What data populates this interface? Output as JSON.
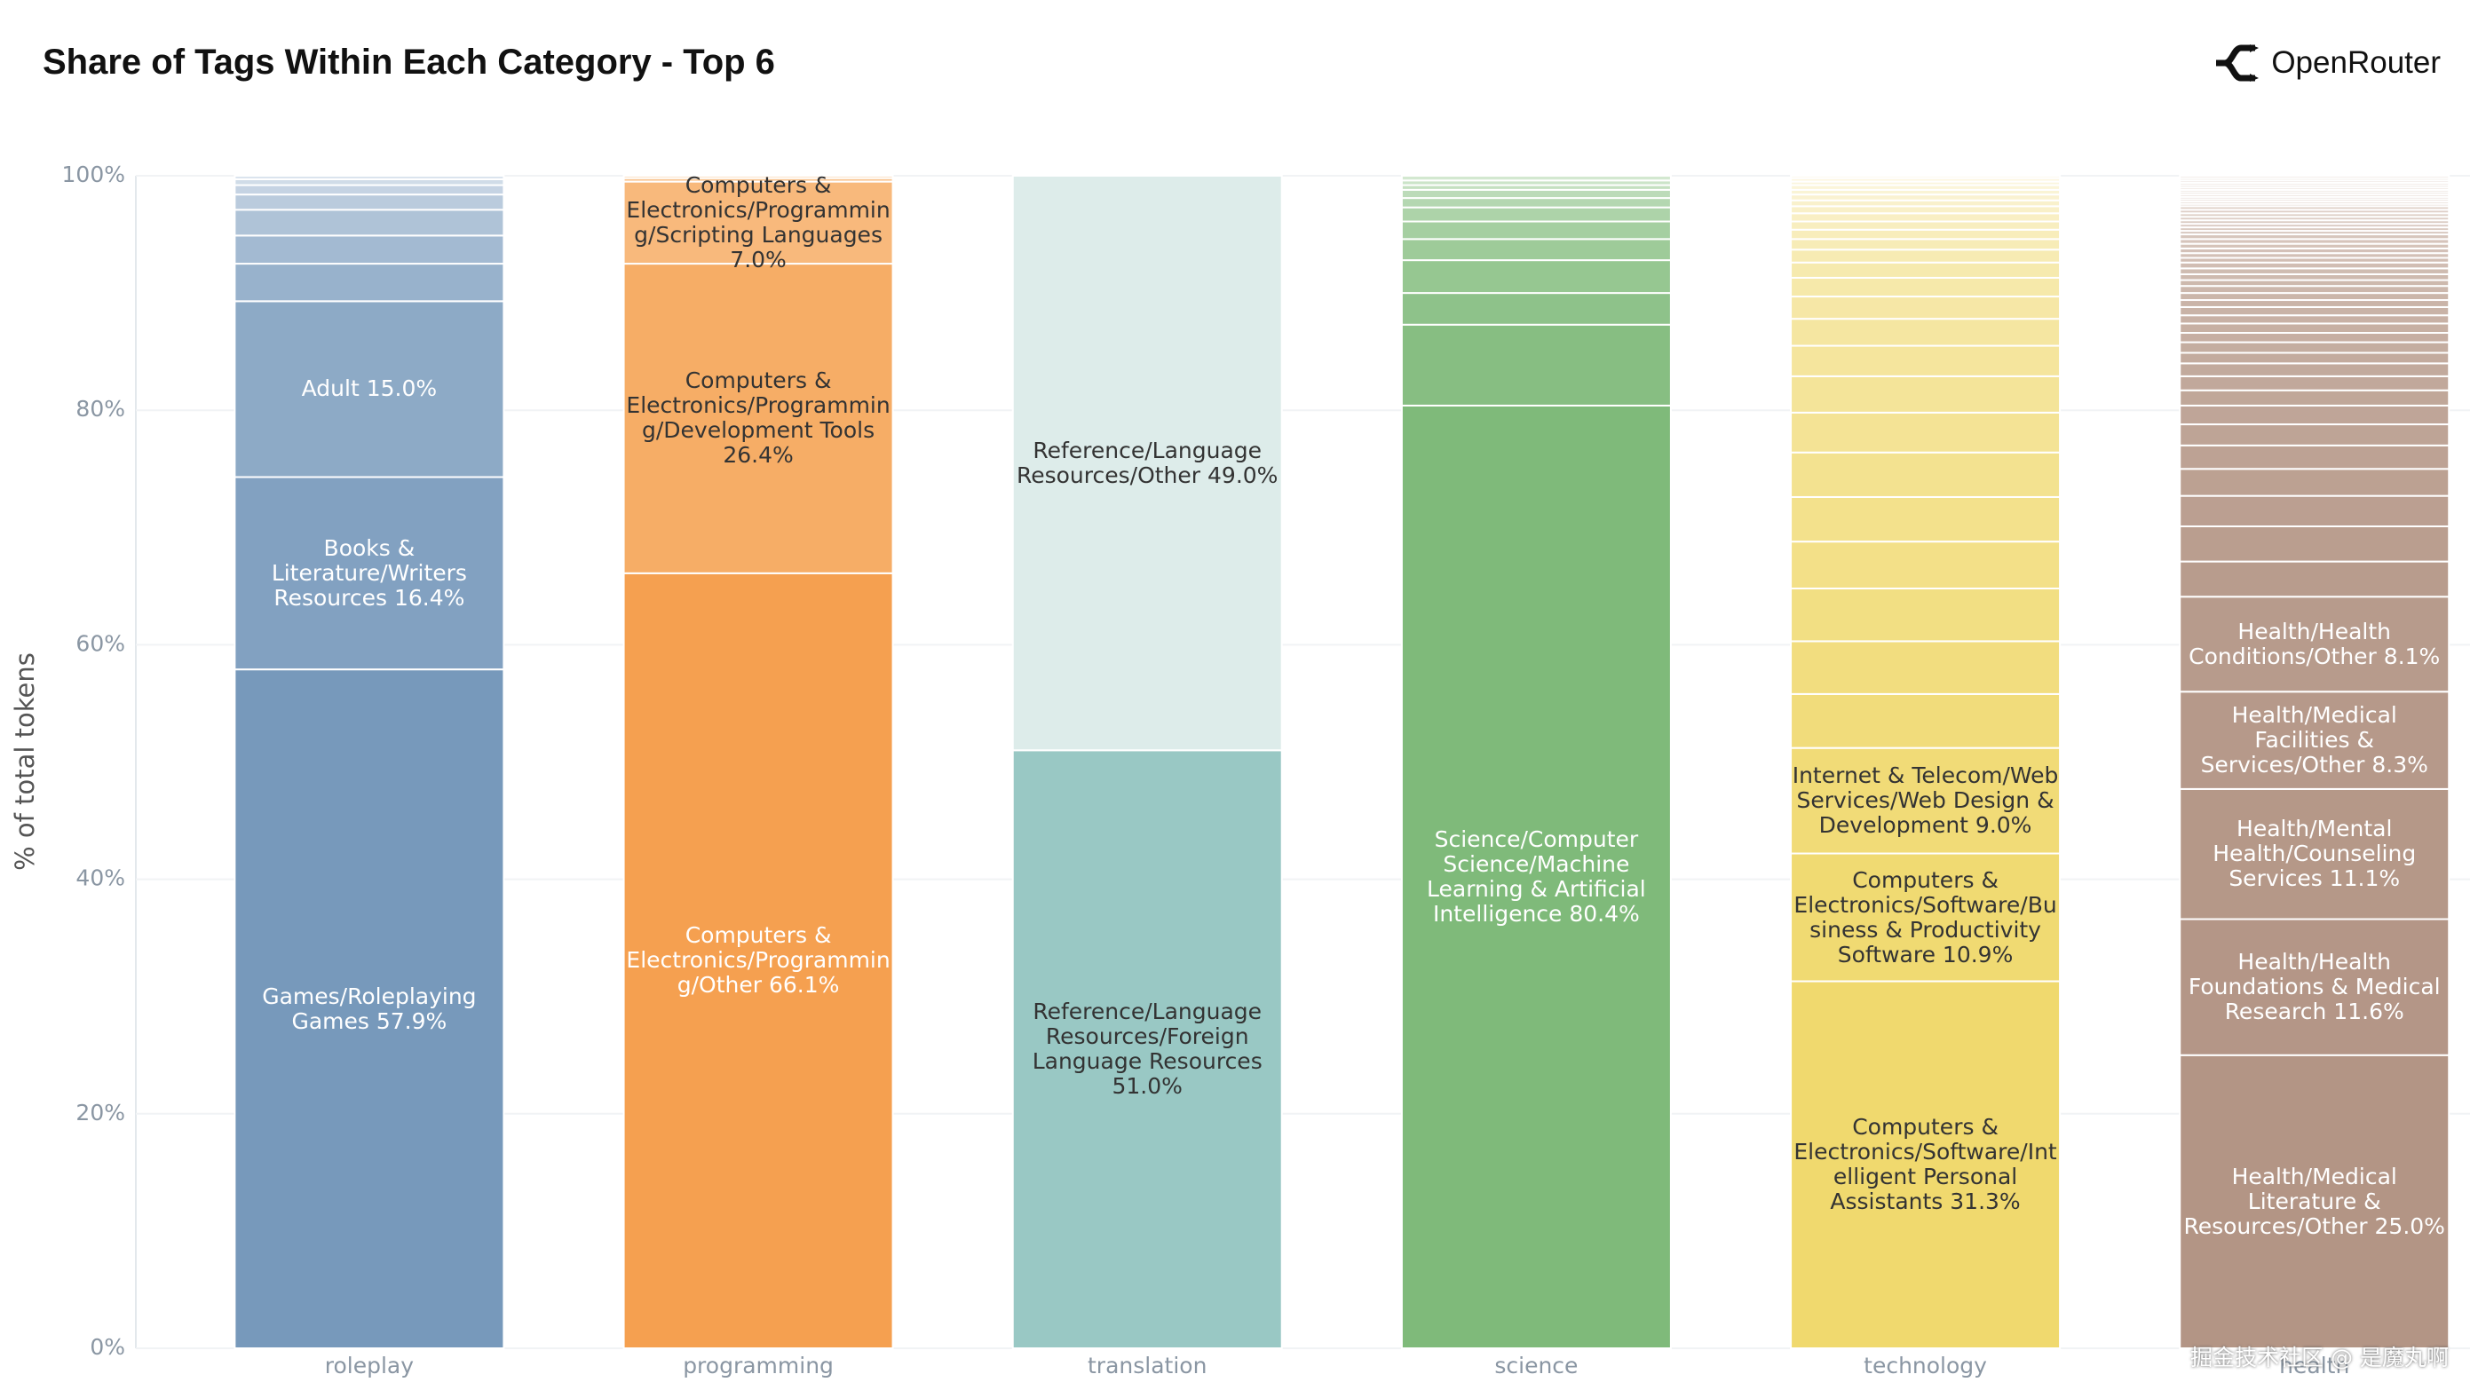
{
  "header": {
    "brand": "OpenRouter"
  },
  "watermark": "掘金技术社区 @ 是魔丸啊",
  "chart_data": {
    "type": "stacked_bar",
    "title": "Share of Tags Within Each Category - Top 6",
    "y_label": "% of total tokens",
    "categories": [
      "roleplay",
      "programming",
      "translation",
      "science",
      "technology",
      "health"
    ],
    "ylim": [
      0,
      100
    ],
    "yticks": [
      {
        "value": 0,
        "label": "0%"
      },
      {
        "value": 20,
        "label": "20%"
      },
      {
        "value": 40,
        "label": "40%"
      },
      {
        "value": 60,
        "label": "60%"
      },
      {
        "value": 80,
        "label": "80%"
      },
      {
        "value": 100,
        "label": "100%"
      }
    ],
    "grid": true,
    "stacks": [
      {
        "color": "#7799bb",
        "top_color": "#dbe4ee",
        "values": [
          57.9,
          16.4,
          15.0,
          3.2,
          2.4,
          2.2,
          1.3,
          0.8,
          0.5,
          0.3
        ],
        "labels": [
          "Games/Roleplaying Games 57.9%",
          "Books & Literature/Writers Resources 16.4%",
          "Adult 15.0%",
          null,
          null,
          null,
          null,
          null,
          null,
          null
        ]
      },
      {
        "color": "#f5a050",
        "top_color": "#fad2a8",
        "values": [
          66.1,
          26.4,
          7.0,
          0.3,
          0.2
        ],
        "labels": [
          "Computers & Electronics/Programming/Other 66.1%",
          "Computers & Electronics/Programming/Development Tools 26.4%",
          "Computers & Electronics/Programming/Scripting Languages 7.0%",
          null,
          null
        ]
      },
      {
        "color": "#99c8c4",
        "top_color": "#ddecea",
        "values": [
          51.0,
          49.0
        ],
        "labels": [
          "Reference/Language Resources/Foreign Language Resources 51.0%",
          "Reference/Language Resources/Other 49.0%"
        ]
      },
      {
        "color": "#7fba7a",
        "top_color": "#d3e8d0",
        "values": [
          80.4,
          6.9,
          2.7,
          2.8,
          1.8,
          1.5,
          1.2,
          0.8,
          0.7,
          0.4,
          0.4,
          0.4
        ],
        "labels": [
          "Science/Computer Science/Machine Learning & Artificial Intelligence 80.4%",
          null,
          null,
          null,
          null,
          null,
          null,
          null,
          null,
          null,
          null,
          null
        ]
      },
      {
        "color": "#f0d96e",
        "top_color": "#fcf8e6",
        "values": [
          31.3,
          10.9,
          9.0,
          4.6,
          4.5,
          4.5,
          4.0,
          3.8,
          3.8,
          3.4,
          3.1,
          2.6,
          2.3,
          1.9,
          1.6,
          1.3,
          1.1,
          0.9,
          0.8,
          0.7,
          0.7,
          0.6,
          0.5,
          0.5,
          0.4,
          0.4,
          0.3,
          0.3,
          0.2
        ],
        "labels": [
          "Computers & Electronics/Software/Intelligent Personal Assistants 31.3%",
          "Computers & Electronics/Software/Business & Productivity Software 10.9%",
          "Internet & Telecom/Web Services/Web Design & Development 9.0%",
          null,
          null,
          null,
          null,
          null,
          null,
          null,
          null,
          null,
          null,
          null,
          null,
          null,
          null,
          null,
          null,
          null,
          null,
          null,
          null,
          null,
          null,
          null,
          null,
          null,
          null
        ]
      },
      {
        "color": "#b39585",
        "top_color": "#eee5e0",
        "values": [
          25.0,
          11.6,
          11.1,
          8.3,
          8.1,
          3.0,
          3.0,
          2.6,
          2.3,
          2.0,
          1.8,
          1.6,
          1.3,
          1.2,
          1.1,
          0.9,
          0.9,
          0.8,
          0.8,
          0.7,
          0.7,
          0.6,
          0.6,
          0.6,
          0.5,
          0.5,
          0.5,
          0.5,
          0.4,
          0.4,
          0.4,
          0.4,
          0.4,
          0.4,
          0.3,
          0.3,
          0.3,
          0.3,
          0.3,
          0.3,
          0.3,
          0.3,
          0.2,
          0.2,
          0.2,
          0.2,
          0.2,
          0.2,
          0.2,
          0.2,
          0.2,
          0.2,
          0.2,
          0.2,
          0.2
        ],
        "labels": [
          "Health/Medical Literature & Resources/Other 25.0%",
          "Health/Health Foundations & Medical Research 11.6%",
          "Health/Mental Health/Counseling Services 11.1%",
          "Health/Medical Facilities & Services/Other 8.3%",
          "Health/Health Conditions/Other 8.1%",
          null,
          null,
          null,
          null,
          null,
          null,
          null,
          null,
          null,
          null,
          null,
          null,
          null,
          null,
          null,
          null,
          null,
          null,
          null,
          null,
          null,
          null,
          null,
          null,
          null,
          null,
          null,
          null,
          null,
          null,
          null,
          null,
          null,
          null,
          null,
          null,
          null,
          null,
          null,
          null,
          null,
          null,
          null,
          null,
          null,
          null,
          null,
          null,
          null,
          null
        ]
      }
    ]
  }
}
